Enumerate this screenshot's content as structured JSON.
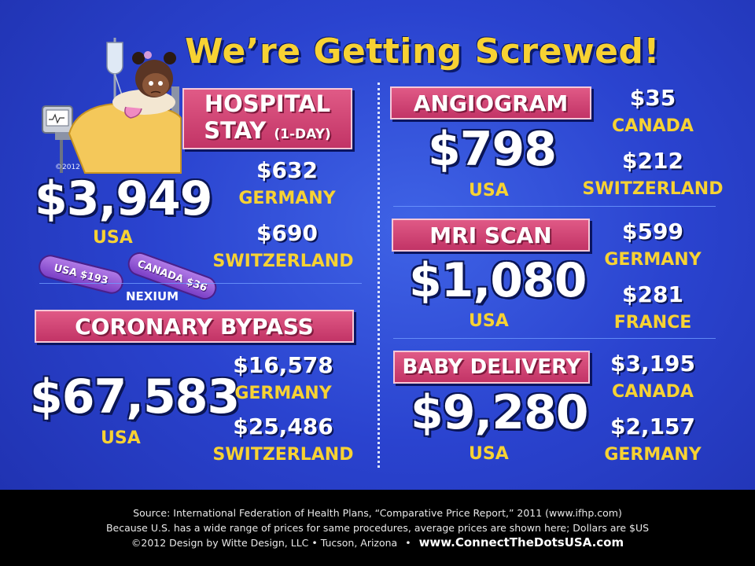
{
  "title": "We’re Getting Screwed!",
  "colors": {
    "background": "#2a43cf",
    "accent_yellow": "#f7d233",
    "banner_pink": "#c23466",
    "footer_bg": "#000000"
  },
  "hospital": {
    "line1": "HOSPITAL",
    "line2": "STAY",
    "suffix": "(1-DAY)",
    "usa_price": "$3,949",
    "usa_label": "USA",
    "copyright": "©2012",
    "compare": [
      {
        "price": "$632",
        "country": "GERMANY"
      },
      {
        "price": "$690",
        "country": "SWITZERLAND"
      }
    ]
  },
  "nexium": {
    "pill_usa": "USA $193",
    "pill_canada": "CANADA $36",
    "label": "NEXIUM"
  },
  "bypass": {
    "label": "CORONARY BYPASS",
    "usa_price": "$67,583",
    "usa_label": "USA",
    "compare": [
      {
        "price": "$16,578",
        "country": "GERMANY"
      },
      {
        "price": "$25,486",
        "country": "SWITZERLAND"
      }
    ]
  },
  "angiogram": {
    "label": "ANGIOGRAM",
    "usa_price": "$798",
    "usa_label": "USA",
    "compare": [
      {
        "price": "$35",
        "country": "CANADA"
      },
      {
        "price": "$212",
        "country": "SWITZERLAND"
      }
    ]
  },
  "mri": {
    "label": "MRI SCAN",
    "usa_price": "$1,080",
    "usa_label": "USA",
    "compare": [
      {
        "price": "$599",
        "country": "GERMANY"
      },
      {
        "price": "$281",
        "country": "FRANCE"
      }
    ]
  },
  "baby": {
    "label": "BABY DELIVERY",
    "usa_price": "$9,280",
    "usa_label": "USA",
    "compare": [
      {
        "price": "$3,195",
        "country": "CANADA"
      },
      {
        "price": "$2,157",
        "country": "GERMANY"
      }
    ]
  },
  "footer": {
    "source": "Source: International Federation of Health Plans, “Comparative Price Report,” 2011 (www.ifhp.com)",
    "note": "Because U.S. has a wide range of prices for same procedures, average prices are shown here; Dollars are $US",
    "credit": "©2012 Design by Witte Design, LLC • Tucson, Arizona",
    "separator": "•",
    "website": "www.ConnectTheDotsUSA.com"
  }
}
